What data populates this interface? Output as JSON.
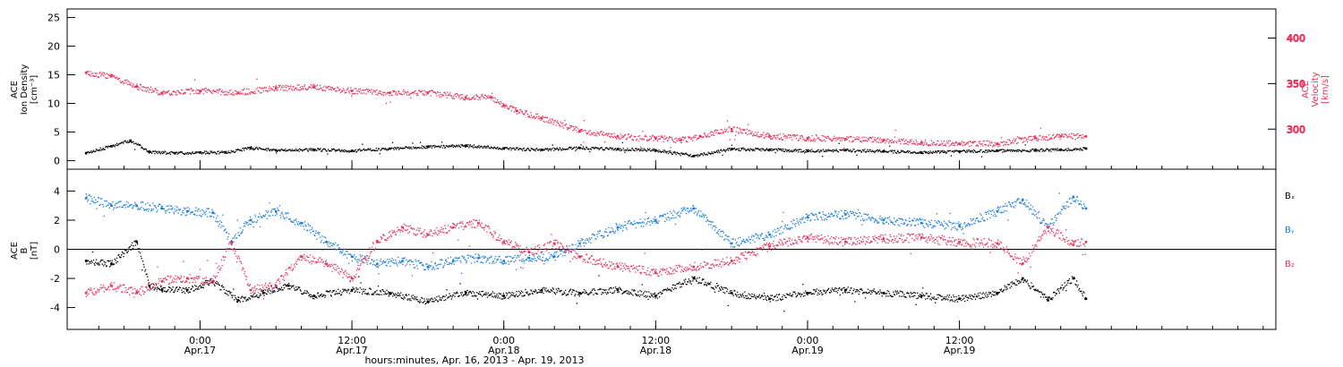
{
  "colors": {
    "black": "#000000",
    "pink": "#e8305a",
    "blue": "#1a7fdc"
  },
  "chart_data": [
    {
      "type": "scatter",
      "panel": "top",
      "ylabel_left_lines": [
        "ACE",
        "Ion Density",
        "[cm⁻³]"
      ],
      "ylabel_right_lines": [
        "ACE",
        "Velocity",
        "[km/s]"
      ],
      "ylim_left": [
        -1.5,
        26.5
      ],
      "yticks_left": [
        "0",
        "5",
        "10",
        "15",
        "20",
        "25"
      ],
      "yticks_left_values": [
        0,
        5,
        10,
        15,
        20,
        25
      ],
      "ylim_right": [
        256,
        432
      ],
      "yticks_right": [
        "300",
        "350",
        "400"
      ],
      "yticks_right_values": [
        300,
        350,
        400
      ],
      "series": [
        {
          "axis": "left",
          "color": "#000000",
          "x": [
            -9,
            -7,
            -5.5,
            -4,
            -2,
            0,
            2,
            4,
            6,
            9,
            12,
            15,
            18,
            21,
            24,
            27,
            30,
            33,
            36,
            39,
            42,
            45,
            48,
            51,
            54,
            57,
            60,
            63,
            66,
            68,
            70
          ],
          "y": [
            1.3,
            2.5,
            3.5,
            1.5,
            1.3,
            1.4,
            1.4,
            2.2,
            1.8,
            1.9,
            1.7,
            2.1,
            2.4,
            2.6,
            2.1,
            1.9,
            2.2,
            2.0,
            1.8,
            0.8,
            2.0,
            1.9,
            1.7,
            1.8,
            1.6,
            1.4,
            1.6,
            1.7,
            1.8,
            1.9,
            2.1
          ]
        },
        {
          "axis": "right",
          "color": "#e8305a",
          "x": [
            -9,
            -7,
            -5,
            -3,
            0,
            3,
            6,
            9,
            12,
            15,
            18,
            21,
            23,
            24,
            25,
            27,
            30,
            33,
            36,
            38,
            39.5,
            42,
            45,
            48,
            51,
            54,
            57,
            60,
            63,
            66,
            68,
            70
          ],
          "y": [
            362,
            358,
            347,
            340,
            342,
            340,
            345,
            346,
            342,
            340,
            340,
            335,
            335,
            326,
            320,
            312,
            298,
            292,
            290,
            288,
            292,
            300,
            292,
            290,
            289,
            288,
            285,
            284,
            284,
            290,
            292,
            292
          ]
        }
      ]
    },
    {
      "type": "scatter",
      "panel": "bottom",
      "ylabel_lines": [
        "ACE",
        "B",
        "[nT]"
      ],
      "ylim": [
        -5.5,
        5.5
      ],
      "yticks": [
        "-4",
        "-2",
        "0",
        "2",
        "4"
      ],
      "yticks_values": [
        -4,
        -2,
        0,
        2,
        4
      ],
      "legend": [
        "Bₓ",
        "Bᵧ",
        "B₂"
      ],
      "legend_colors": [
        "#000000",
        "#1a7fdc",
        "#e8305a"
      ],
      "series": [
        {
          "name": "Bₓ",
          "color": "#000000",
          "x": [
            -9,
            -7,
            -5,
            -4,
            -3,
            -1,
            1,
            3,
            5,
            7,
            9,
            12,
            15,
            18,
            21,
            24,
            27,
            30,
            33,
            36,
            39,
            42,
            45,
            48,
            51,
            54,
            57,
            60,
            63,
            65,
            67,
            69,
            70
          ],
          "y": [
            -0.8,
            -1.0,
            0.5,
            -2.5,
            -2.8,
            -2.8,
            -2.2,
            -3.5,
            -3.0,
            -2.5,
            -3.2,
            -2.8,
            -3.0,
            -3.6,
            -3.0,
            -3.2,
            -2.8,
            -3.0,
            -2.8,
            -3.2,
            -2.0,
            -3.0,
            -3.4,
            -3.0,
            -2.8,
            -3.0,
            -3.2,
            -3.4,
            -3.0,
            -2.0,
            -3.5,
            -2.0,
            -3.4
          ]
        },
        {
          "name": "Bᵧ",
          "color": "#1a7fdc",
          "x": [
            -9,
            -7,
            -5,
            -3,
            -1,
            1,
            2.5,
            4,
            6,
            8,
            10,
            12,
            14,
            16,
            18,
            20,
            22,
            24,
            26,
            28,
            30,
            33,
            36,
            39,
            42,
            45,
            48,
            51,
            54,
            57,
            60,
            63,
            65,
            67,
            69,
            70
          ],
          "y": [
            3.5,
            3.0,
            3.0,
            2.8,
            2.6,
            2.5,
            0.5,
            2.0,
            2.6,
            1.8,
            0.5,
            -0.5,
            -1.0,
            -0.8,
            -1.2,
            -0.8,
            -0.6,
            -0.8,
            -0.6,
            -0.5,
            0.4,
            1.5,
            2.0,
            2.8,
            0.4,
            1.0,
            2.2,
            2.4,
            2.0,
            1.8,
            1.6,
            2.6,
            3.4,
            1.5,
            3.6,
            2.8
          ]
        },
        {
          "name": "B₂",
          "color": "#e8305a",
          "x": [
            -9,
            -7,
            -5,
            -3,
            -1,
            1,
            2.5,
            4,
            6,
            8,
            10,
            12,
            14,
            16,
            18,
            20,
            22,
            24,
            26,
            28,
            30,
            33,
            36,
            39,
            42,
            45,
            48,
            51,
            54,
            57,
            60,
            63,
            65,
            67,
            69,
            70
          ],
          "y": [
            -3.0,
            -2.5,
            -3.0,
            -2.2,
            -2.0,
            -2.2,
            0.5,
            -2.8,
            -2.5,
            -0.5,
            -1.0,
            -2.0,
            0.5,
            1.5,
            1.0,
            1.5,
            1.8,
            0.5,
            -0.2,
            0.4,
            -0.5,
            -1.2,
            -1.6,
            -1.2,
            -0.8,
            0.2,
            0.8,
            0.5,
            0.7,
            0.8,
            0.5,
            0.4,
            -1.0,
            1.5,
            0.3,
            0.5
          ]
        }
      ]
    }
  ],
  "xaxis": {
    "xlim": [
      -10.5,
      85
    ],
    "ticks": [
      {
        "x": 0,
        "time": "0:00",
        "date": "Apr.17"
      },
      {
        "x": 12,
        "time": "12:00",
        "date": "Apr.17"
      },
      {
        "x": 24,
        "time": "0:00",
        "date": "Apr.18"
      },
      {
        "x": 36,
        "time": "12:00",
        "date": "Apr.18"
      },
      {
        "x": 48,
        "time": "0:00",
        "date": "Apr.19"
      },
      {
        "x": 60,
        "time": "12:00",
        "date": "Apr.19"
      }
    ],
    "xlabel": "hours:minutes, Apr. 16, 2013 - Apr. 19, 2013"
  }
}
